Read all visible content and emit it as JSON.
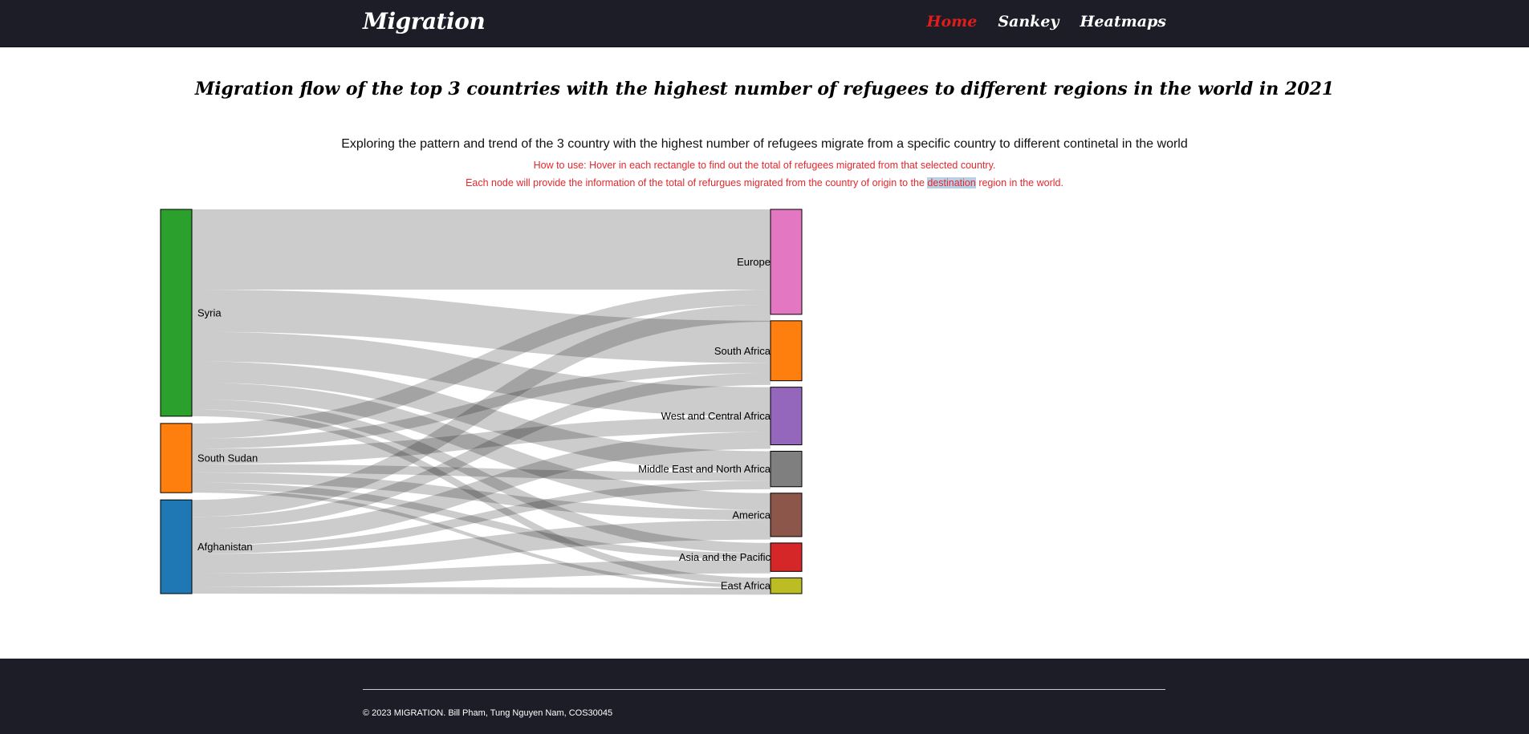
{
  "nav": {
    "brand": "Migration",
    "links": [
      {
        "label": "Home",
        "active": true
      },
      {
        "label": "Sankey",
        "active": false
      },
      {
        "label": "Heatmaps",
        "active": false
      }
    ]
  },
  "page": {
    "title": "Migration flow of the top 3 countries with the highest number of refugees to different regions in the world in 2021",
    "subtitle": "Exploring the pattern and trend of the 3 country with the highest number of refugees migrate from a specific country to different continetal in the world",
    "howto_line1": "How to use: Hover in each rectangle to find out the total of refugees migrated from that selected country.",
    "howto_line2_before": "Each node will provide the information of the total of refurgues migrated from the country of origin to the ",
    "howto_line2_highlight": "destination",
    "howto_line2_after": " region in the world."
  },
  "chart_data": {
    "type": "sankey",
    "sources": [
      {
        "name": "Syria",
        "color": "#2ca02c"
      },
      {
        "name": "South Sudan",
        "color": "#ff7f0e"
      },
      {
        "name": "Afghanistan",
        "color": "#1f77b4"
      }
    ],
    "targets": [
      {
        "name": "Europe",
        "color": "#e377c2"
      },
      {
        "name": "South Africa",
        "color": "#ff7f0e"
      },
      {
        "name": "West and Central Africa",
        "color": "#9467bd"
      },
      {
        "name": "Middle East and North Africa",
        "color": "#7f7f7f"
      },
      {
        "name": "America",
        "color": "#8c564b"
      },
      {
        "name": "Asia and the Pacific",
        "color": "#d62728"
      },
      {
        "name": "East Africa",
        "color": "#bcbd22"
      }
    ],
    "links": [
      {
        "source": "Syria",
        "target": "Europe",
        "value": 95
      },
      {
        "source": "Syria",
        "target": "South Africa",
        "value": 50
      },
      {
        "source": "Syria",
        "target": "West and Central Africa",
        "value": 35
      },
      {
        "source": "Syria",
        "target": "Middle East and North Africa",
        "value": 25
      },
      {
        "source": "Syria",
        "target": "America",
        "value": 20
      },
      {
        "source": "Syria",
        "target": "Asia and the Pacific",
        "value": 12
      },
      {
        "source": "Syria",
        "target": "East Africa",
        "value": 8
      },
      {
        "source": "South Sudan",
        "target": "Europe",
        "value": 18
      },
      {
        "source": "South Sudan",
        "target": "South Africa",
        "value": 12
      },
      {
        "source": "South Sudan",
        "target": "West and Central Africa",
        "value": 18
      },
      {
        "source": "South Sudan",
        "target": "Middle East and North Africa",
        "value": 10
      },
      {
        "source": "South Sudan",
        "target": "America",
        "value": 12
      },
      {
        "source": "South Sudan",
        "target": "Asia and the Pacific",
        "value": 8
      },
      {
        "source": "South Sudan",
        "target": "East Africa",
        "value": 4
      },
      {
        "source": "Afghanistan",
        "target": "Europe",
        "value": 20
      },
      {
        "source": "Afghanistan",
        "target": "South Africa",
        "value": 14
      },
      {
        "source": "Afghanistan",
        "target": "West and Central Africa",
        "value": 20
      },
      {
        "source": "Afghanistan",
        "target": "Middle East and North Africa",
        "value": 10
      },
      {
        "source": "Afghanistan",
        "target": "America",
        "value": 23
      },
      {
        "source": "Afghanistan",
        "target": "Asia and the Pacific",
        "value": 16
      },
      {
        "source": "Afghanistan",
        "target": "East Africa",
        "value": 8
      }
    ]
  },
  "footer": {
    "copyright": "© 2023 MIGRATION. Bill Pham, Tung Nguyen Nam, COS30045"
  }
}
